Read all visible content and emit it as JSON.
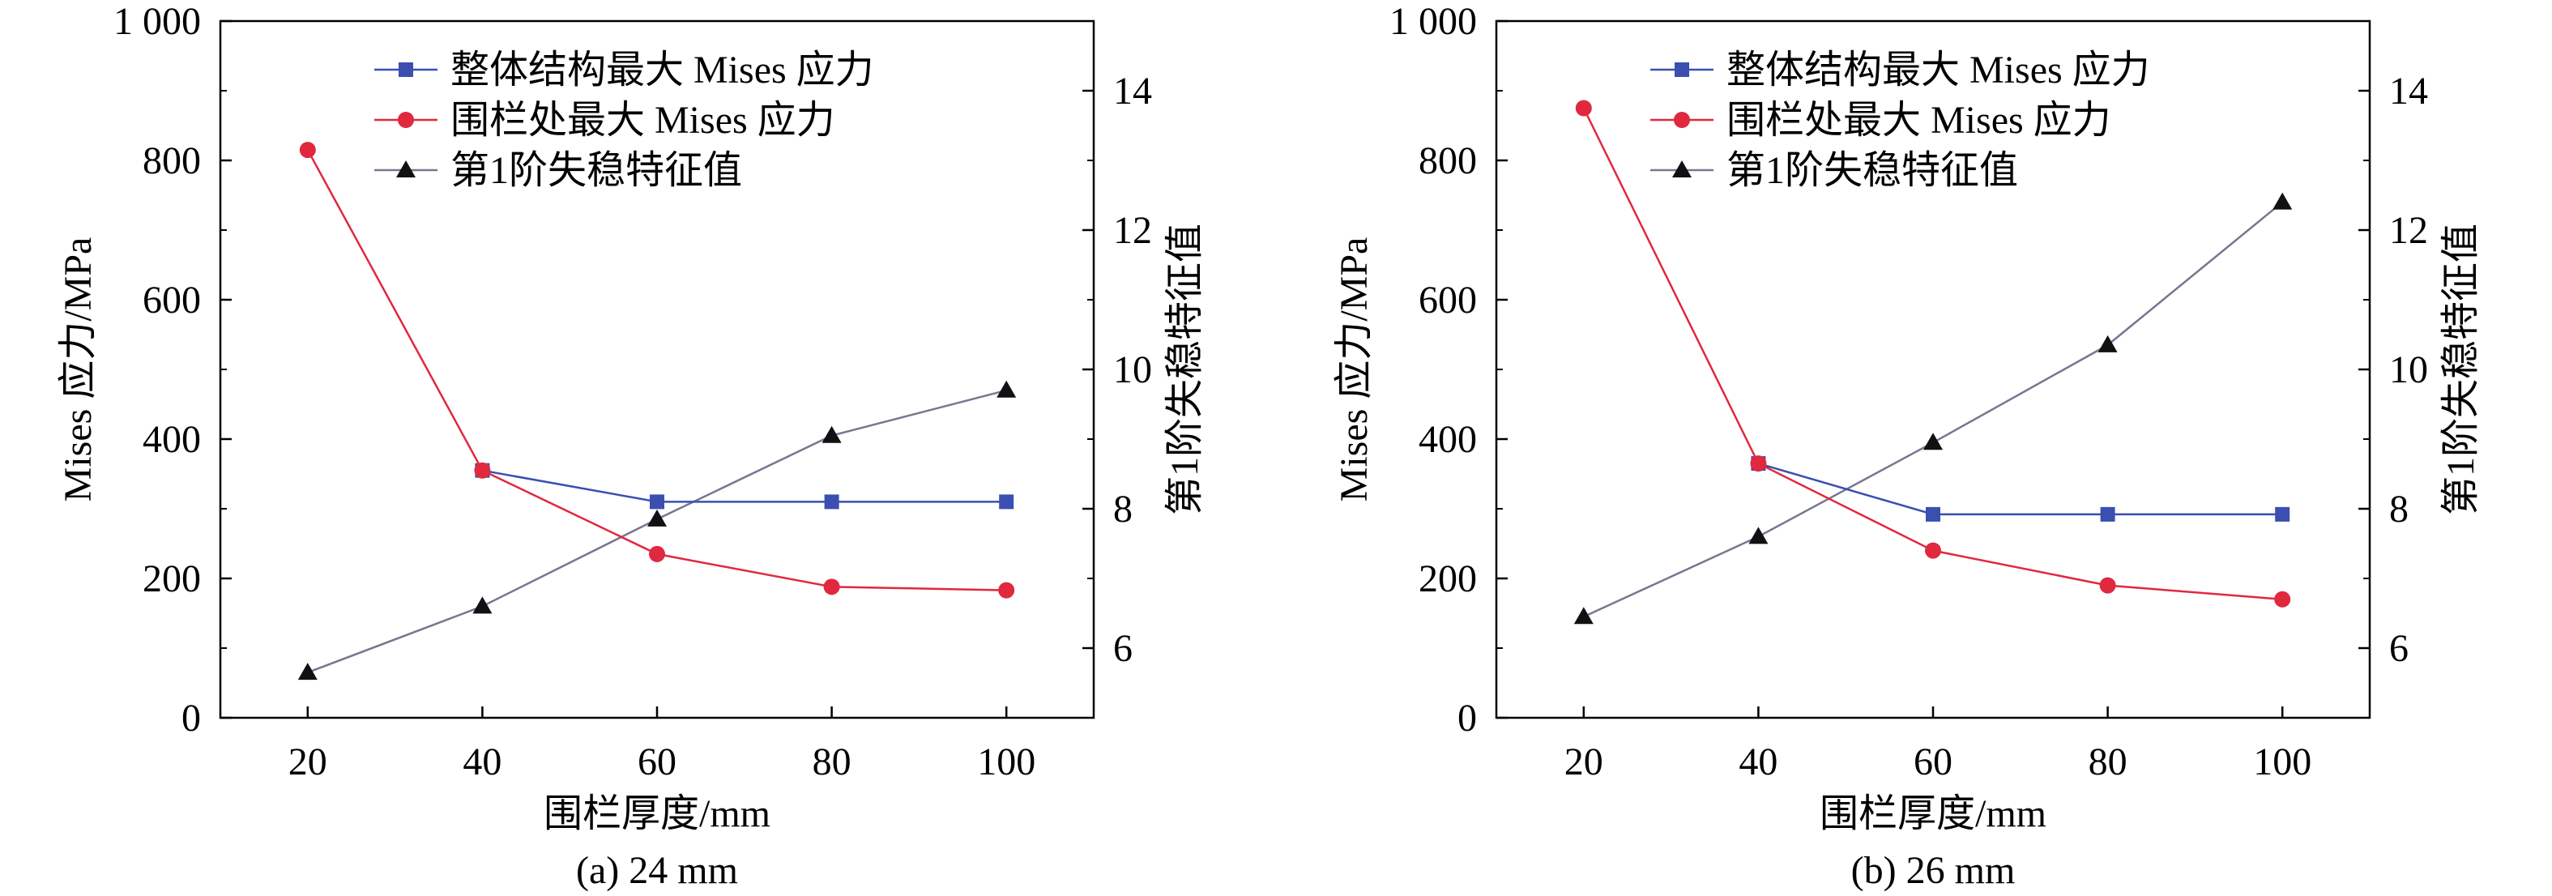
{
  "colors": {
    "overall_series": "#3a4fb0",
    "fence_series": "#e0283f",
    "buckling_series": "#111111",
    "buckling_line": "#7a7590",
    "axis": "#000000"
  },
  "chart_data": [
    {
      "type": "line",
      "caption": "(a) 24 mm",
      "xlabel": "围栏厚度/mm",
      "ylabel": "Mises 应力/MPa",
      "y2label": "第1阶失稳特征值",
      "x": [
        20,
        40,
        60,
        80,
        100
      ],
      "xlim": [
        10,
        110
      ],
      "ylim": [
        0,
        1000
      ],
      "y2lim": [
        5,
        15
      ],
      "xticks": [
        "20",
        "40",
        "60",
        "80",
        "100"
      ],
      "yticks": [
        "0",
        "200",
        "400",
        "600",
        "800",
        "1 000"
      ],
      "y2ticks": [
        "6",
        "8",
        "10",
        "12",
        "14"
      ],
      "legend_position": "top-center",
      "grid": false,
      "series": [
        {
          "name": "整体结构最大 Mises 应力",
          "axis": "left",
          "marker": "square",
          "x": [
            40,
            60,
            80,
            100
          ],
          "values": [
            355,
            310,
            310,
            310
          ]
        },
        {
          "name": "围栏处最大 Mises 应力",
          "axis": "left",
          "marker": "circle",
          "x": [
            20,
            40,
            60,
            80,
            100
          ],
          "values": [
            815,
            355,
            235,
            188,
            183
          ]
        },
        {
          "name": "第1阶失稳特征值",
          "axis": "right",
          "marker": "triangle",
          "x": [
            20,
            40,
            60,
            80,
            100
          ],
          "values": [
            5.65,
            6.6,
            7.85,
            9.05,
            9.7
          ]
        }
      ]
    },
    {
      "type": "line",
      "caption": "(b) 26 mm",
      "xlabel": "围栏厚度/mm",
      "ylabel": "Mises 应力/MPa",
      "y2label": "第1阶失稳特征值",
      "x": [
        20,
        40,
        60,
        80,
        100
      ],
      "xlim": [
        10,
        110
      ],
      "ylim": [
        0,
        1000
      ],
      "y2lim": [
        5,
        15
      ],
      "xticks": [
        "20",
        "40",
        "60",
        "80",
        "100"
      ],
      "yticks": [
        "0",
        "200",
        "400",
        "600",
        "800",
        "1 000"
      ],
      "y2ticks": [
        "6",
        "8",
        "10",
        "12",
        "14"
      ],
      "legend_position": "top-center",
      "grid": false,
      "series": [
        {
          "name": "整体结构最大 Mises 应力",
          "axis": "left",
          "marker": "square",
          "x": [
            40,
            60,
            80,
            100
          ],
          "values": [
            365,
            292,
            292,
            292
          ]
        },
        {
          "name": "围栏处最大 Mises 应力",
          "axis": "left",
          "marker": "circle",
          "x": [
            20,
            40,
            60,
            80,
            100
          ],
          "values": [
            875,
            365,
            240,
            190,
            170
          ]
        },
        {
          "name": "第1阶失稳特征值",
          "axis": "right",
          "marker": "triangle",
          "x": [
            20,
            40,
            60,
            80,
            100
          ],
          "values": [
            6.45,
            7.6,
            8.95,
            10.35,
            12.4
          ]
        }
      ]
    }
  ]
}
